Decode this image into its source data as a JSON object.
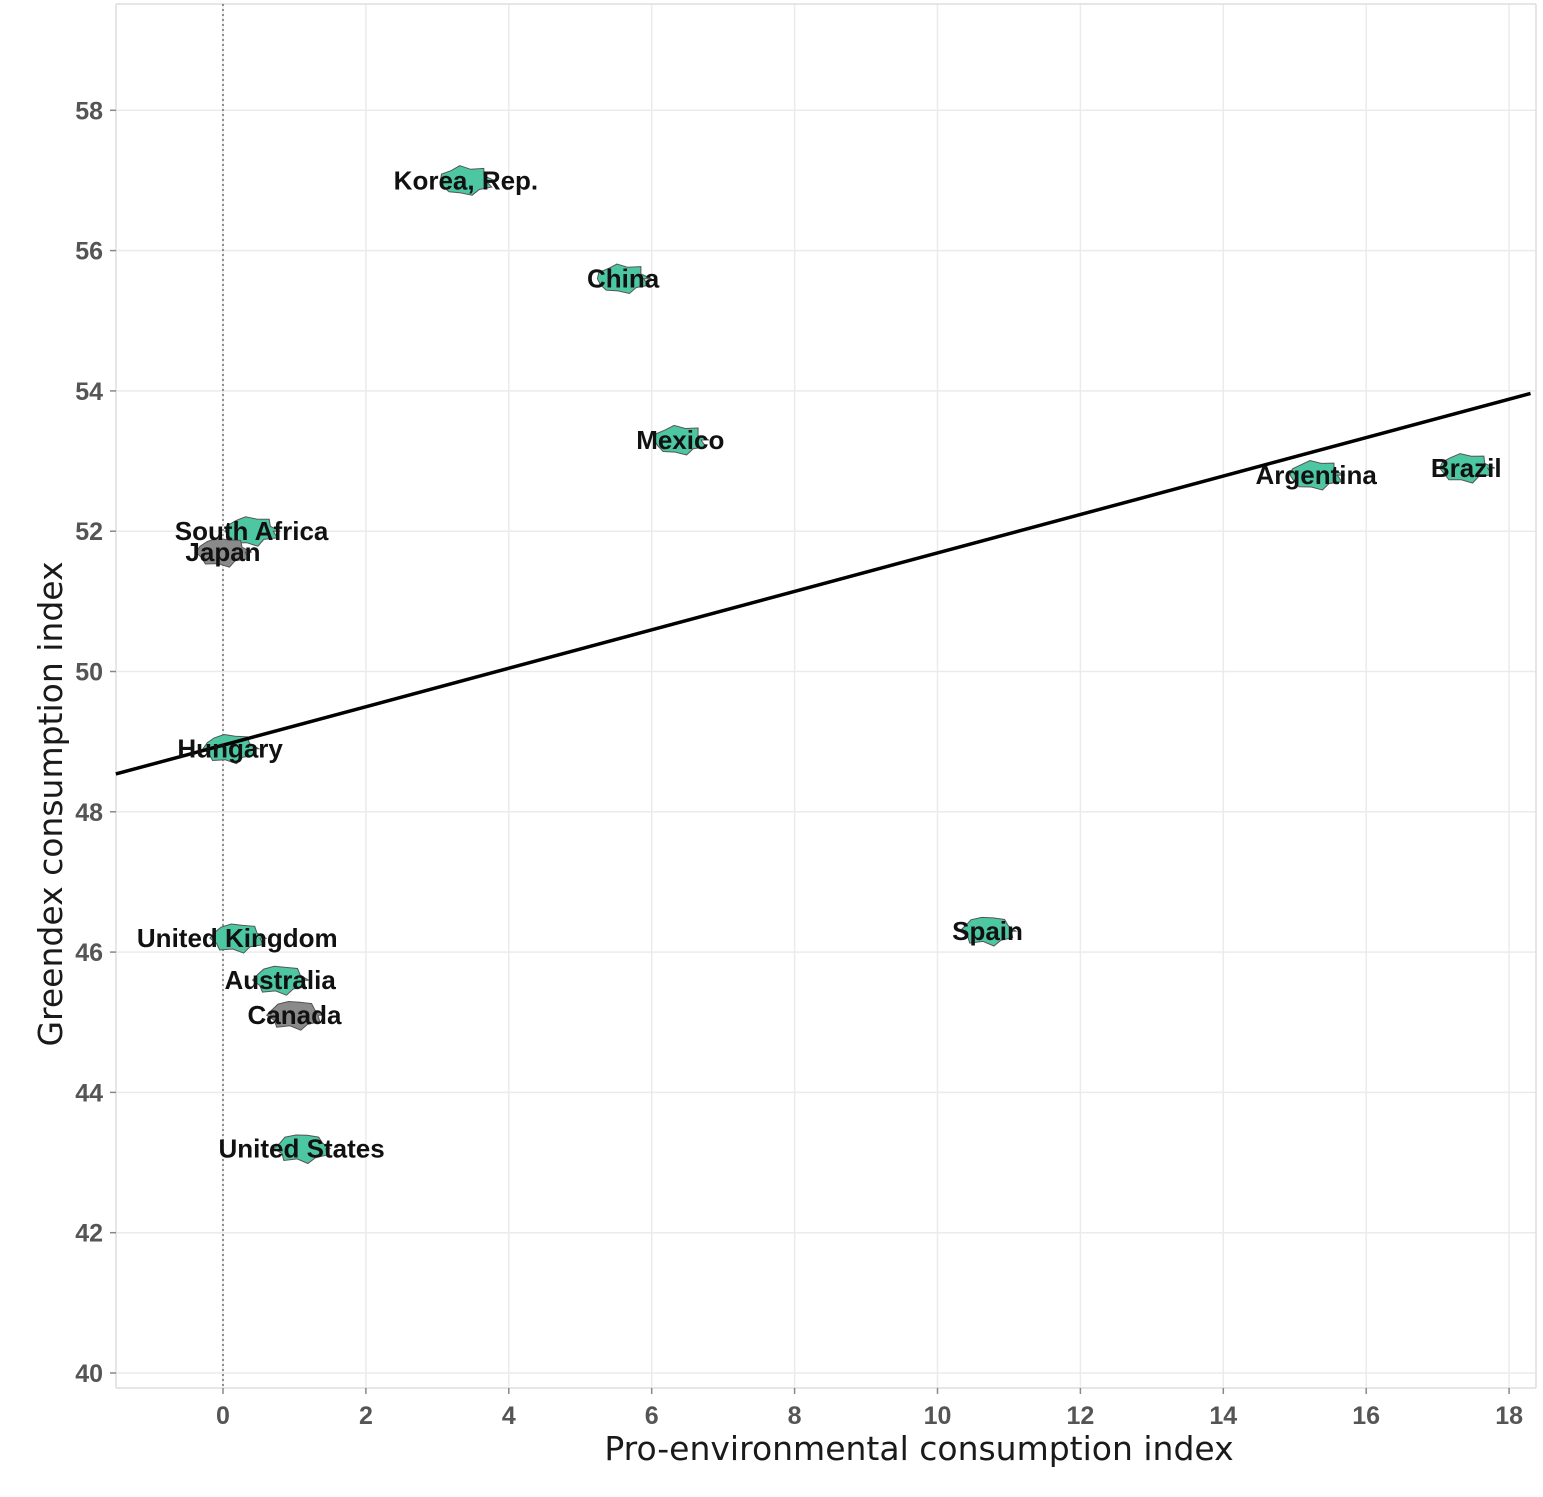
{
  "chart_data": {
    "type": "scatter",
    "xlabel": "Pro-environmental consumption index",
    "ylabel": "Greendex consumption index",
    "xlim": [
      -1.5,
      18.3
    ],
    "ylim": [
      39.7,
      59.7
    ],
    "xticks": [
      "0",
      "2",
      "4",
      "6",
      "8",
      "10",
      "12",
      "14",
      "16",
      "18"
    ],
    "yticks": [
      "40",
      "42",
      "44",
      "46",
      "48",
      "50",
      "52",
      "54",
      "56",
      "58"
    ],
    "grid": true,
    "reference_line": {
      "orientation": "vertical",
      "x": 0,
      "style": "dotted"
    },
    "trend_line": {
      "intercept": 48.95,
      "slope": 0.274
    },
    "marker": "country-shape",
    "marker_colors": {
      "fill": "#4dc7a1",
      "alt_fill": "#8a8a8a",
      "outline": "#555555"
    },
    "points": [
      {
        "label": "Korea, Rep.",
        "x": 3.4,
        "y": 57.0
      },
      {
        "label": "China",
        "x": 5.6,
        "y": 55.6
      },
      {
        "label": "Mexico",
        "x": 6.4,
        "y": 53.3
      },
      {
        "label": "Argentina",
        "x": 15.3,
        "y": 52.8
      },
      {
        "label": "Brazil",
        "x": 17.4,
        "y": 52.9
      },
      {
        "label": "South Africa",
        "x": 0.4,
        "y": 52.0
      },
      {
        "label": "Japan",
        "x": 0.0,
        "y": 51.7
      },
      {
        "label": "Hungary",
        "x": 0.1,
        "y": 48.9
      },
      {
        "label": "United Kingdom",
        "x": 0.2,
        "y": 46.2
      },
      {
        "label": "Australia",
        "x": 0.8,
        "y": 45.6
      },
      {
        "label": "Canada",
        "x": 1.0,
        "y": 45.1
      },
      {
        "label": "Spain",
        "x": 10.7,
        "y": 46.3
      },
      {
        "label": "United States",
        "x": 1.1,
        "y": 43.2
      }
    ]
  }
}
